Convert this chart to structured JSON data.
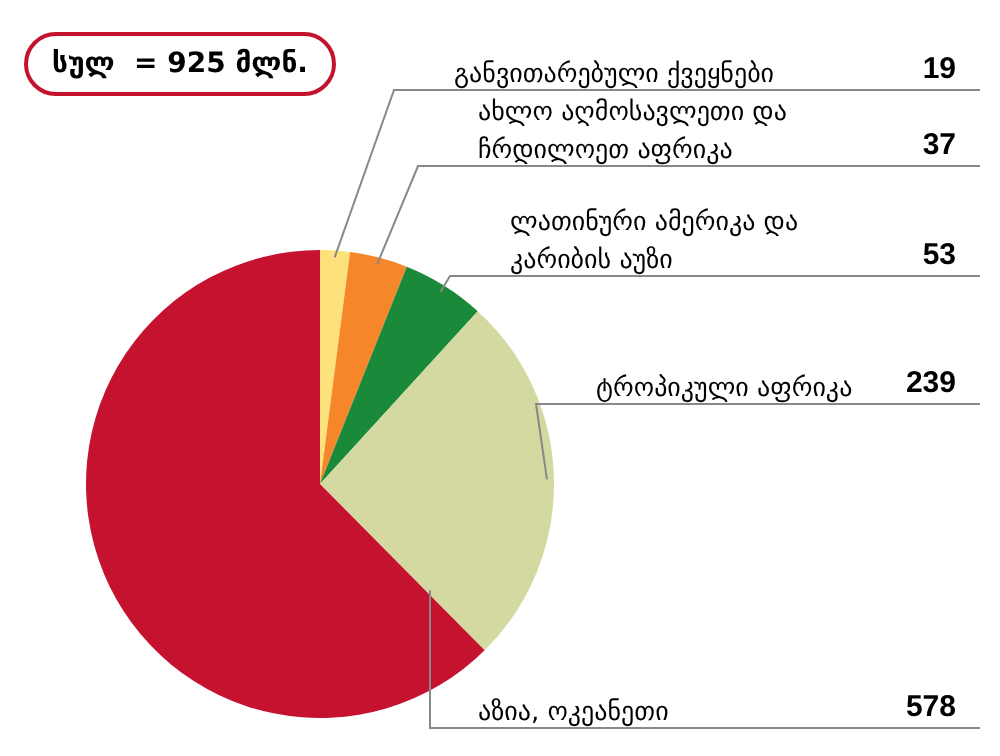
{
  "chart_data": {
    "type": "pie",
    "title": "სულ  = 925 მლნ.",
    "categories": [
      "განვითარებული ქვეყნები",
      "ახლო აღმოსავლეთი და ჩრდილოეთ აფრიკა",
      "ლათინური ამერიკა და კარიბის აუზი",
      "ტროპიკული აფრიკა",
      "აზია, ოკეანეთი"
    ],
    "values": [
      19,
      37,
      53,
      239,
      578
    ],
    "colors": [
      "#fde17a",
      "#f5862a",
      "#1a8a3a",
      "#d3d9a0",
      "#c4122f"
    ],
    "data_labels": true,
    "legend": false
  }
}
